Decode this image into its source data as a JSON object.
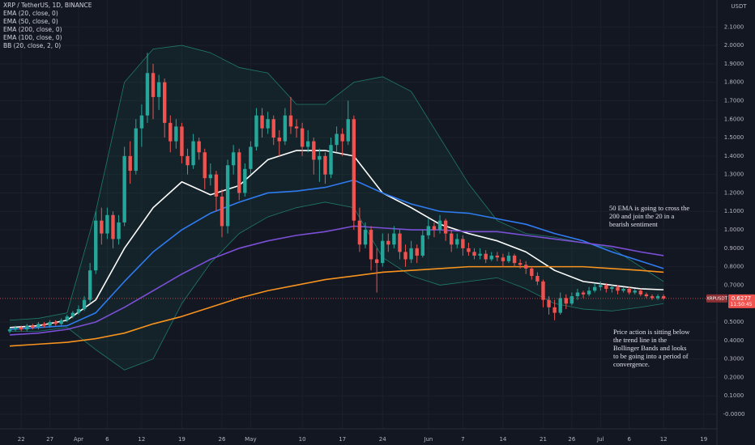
{
  "chart_data": {
    "type": "candlestick",
    "title": "XRP / TetherUS, 1D, BINANCE",
    "y_axis_label": "USDT",
    "up_color": "#26a69a",
    "down_color": "#ef5350",
    "grid": true,
    "xlim": [
      -1.7,
      123.3
    ],
    "xticks": [
      {
        "value": 2,
        "label": "22"
      },
      {
        "value": 7,
        "label": "27"
      },
      {
        "value": 12,
        "label": "Apr"
      },
      {
        "value": 17,
        "label": "6"
      },
      {
        "value": 23,
        "label": "12"
      },
      {
        "value": 30,
        "label": "19"
      },
      {
        "value": 37,
        "label": "26"
      },
      {
        "value": 42,
        "label": "May"
      },
      {
        "value": 51,
        "label": "10"
      },
      {
        "value": 58,
        "label": "17"
      },
      {
        "value": 65,
        "label": "24"
      },
      {
        "value": 73,
        "label": "Jun"
      },
      {
        "value": 79,
        "label": "7"
      },
      {
        "value": 86,
        "label": "14"
      },
      {
        "value": 93,
        "label": "21"
      },
      {
        "value": 98,
        "label": "26"
      },
      {
        "value": 103,
        "label": "Jul"
      },
      {
        "value": 108,
        "label": "6"
      },
      {
        "value": 114,
        "label": "12"
      },
      {
        "value": 121,
        "label": "19"
      }
    ],
    "ylim": [
      -0.079,
      2.246
    ],
    "yticks": [
      {
        "value": 0,
        "label": "-0.0000"
      },
      {
        "value": 0.1,
        "label": "0.1000"
      },
      {
        "value": 0.2,
        "label": "0.2000"
      },
      {
        "value": 0.3,
        "label": "0.3000"
      },
      {
        "value": 0.4,
        "label": "0.4000"
      },
      {
        "value": 0.5,
        "label": "0.5000"
      },
      {
        "value": 0.7,
        "label": "0.7000"
      },
      {
        "value": 0.8,
        "label": "0.8000"
      },
      {
        "value": 0.9,
        "label": "0.9000"
      },
      {
        "value": 1.0,
        "label": "1.0000"
      },
      {
        "value": 1.1,
        "label": "1.1000"
      },
      {
        "value": 1.2,
        "label": "1.2000"
      },
      {
        "value": 1.3,
        "label": "1.3000"
      },
      {
        "value": 1.4,
        "label": "1.4000"
      },
      {
        "value": 1.5,
        "label": "1.5000"
      },
      {
        "value": 1.6,
        "label": "1.6000"
      },
      {
        "value": 1.7,
        "label": "1.7000"
      },
      {
        "value": 1.8,
        "label": "1.8000"
      },
      {
        "value": 1.9,
        "label": "1.9000"
      },
      {
        "value": 2.0,
        "label": "2.0000"
      },
      {
        "value": 2.1,
        "label": "2.1000"
      }
    ],
    "x": [
      0,
      1,
      2,
      3,
      4,
      5,
      6,
      7,
      8,
      9,
      10,
      11,
      12,
      13,
      14,
      15,
      16,
      17,
      18,
      19,
      20,
      21,
      22,
      23,
      24,
      25,
      26,
      27,
      28,
      29,
      30,
      31,
      32,
      33,
      34,
      35,
      36,
      37,
      38,
      39,
      40,
      41,
      42,
      43,
      44,
      45,
      46,
      47,
      48,
      49,
      50,
      51,
      52,
      53,
      54,
      55,
      56,
      57,
      58,
      59,
      60,
      61,
      62,
      63,
      64,
      65,
      66,
      67,
      68,
      69,
      70,
      71,
      72,
      73,
      74,
      75,
      76,
      77,
      78,
      79,
      80,
      81,
      82,
      83,
      84,
      85,
      86,
      87,
      88,
      89,
      90,
      91,
      92,
      93,
      94,
      95,
      96,
      97,
      98,
      99,
      100,
      101,
      102,
      103,
      104,
      105,
      106,
      107,
      108,
      109,
      110,
      111,
      112,
      113,
      114
    ],
    "ohlc": [
      [
        0.45,
        0.47,
        0.44,
        0.46
      ],
      [
        0.46,
        0.48,
        0.45,
        0.47
      ],
      [
        0.47,
        0.48,
        0.45,
        0.46
      ],
      [
        0.46,
        0.49,
        0.45,
        0.48
      ],
      [
        0.48,
        0.49,
        0.46,
        0.47
      ],
      [
        0.47,
        0.5,
        0.46,
        0.49
      ],
      [
        0.49,
        0.5,
        0.47,
        0.48
      ],
      [
        0.48,
        0.51,
        0.47,
        0.5
      ],
      [
        0.5,
        0.51,
        0.48,
        0.49
      ],
      [
        0.49,
        0.52,
        0.48,
        0.51
      ],
      [
        0.51,
        0.54,
        0.5,
        0.53
      ],
      [
        0.53,
        0.56,
        0.52,
        0.55
      ],
      [
        0.55,
        0.59,
        0.54,
        0.57
      ],
      [
        0.57,
        0.64,
        0.56,
        0.62
      ],
      [
        0.62,
        0.82,
        0.6,
        0.78
      ],
      [
        0.78,
        1.1,
        0.76,
        1.05
      ],
      [
        1.05,
        1.12,
        0.92,
        0.98
      ],
      [
        0.98,
        1.12,
        0.95,
        1.08
      ],
      [
        1.08,
        1.1,
        0.9,
        0.95
      ],
      [
        0.95,
        1.08,
        0.92,
        1.04
      ],
      [
        1.04,
        1.45,
        1.02,
        1.4
      ],
      [
        1.4,
        1.48,
        1.25,
        1.32
      ],
      [
        1.32,
        1.6,
        1.3,
        1.55
      ],
      [
        1.55,
        1.68,
        1.45,
        1.62
      ],
      [
        1.62,
        1.96,
        1.58,
        1.85
      ],
      [
        1.85,
        1.9,
        1.6,
        1.72
      ],
      [
        1.72,
        1.84,
        1.65,
        1.8
      ],
      [
        1.8,
        1.82,
        1.5,
        1.58
      ],
      [
        1.58,
        1.62,
        1.42,
        1.48
      ],
      [
        1.48,
        1.6,
        1.44,
        1.56
      ],
      [
        1.56,
        1.58,
        1.36,
        1.4
      ],
      [
        1.4,
        1.44,
        1.3,
        1.35
      ],
      [
        1.35,
        1.52,
        1.33,
        1.48
      ],
      [
        1.48,
        1.5,
        1.38,
        1.42
      ],
      [
        1.42,
        1.44,
        1.22,
        1.28
      ],
      [
        1.28,
        1.36,
        1.24,
        1.3
      ],
      [
        1.3,
        1.32,
        1.1,
        1.18
      ],
      [
        1.18,
        1.22,
        0.96,
        1.02
      ],
      [
        1.02,
        1.38,
        0.98,
        1.35
      ],
      [
        1.35,
        1.46,
        1.3,
        1.42
      ],
      [
        1.42,
        1.44,
        1.16,
        1.2
      ],
      [
        1.2,
        1.36,
        1.18,
        1.33
      ],
      [
        1.33,
        1.48,
        1.3,
        1.45
      ],
      [
        1.45,
        1.66,
        1.43,
        1.62
      ],
      [
        1.62,
        1.66,
        1.5,
        1.55
      ],
      [
        1.55,
        1.64,
        1.52,
        1.6
      ],
      [
        1.6,
        1.62,
        1.46,
        1.5
      ],
      [
        1.5,
        1.54,
        1.4,
        1.48
      ],
      [
        1.48,
        1.66,
        1.46,
        1.62
      ],
      [
        1.62,
        1.72,
        1.52,
        1.56
      ],
      [
        1.56,
        1.6,
        1.5,
        1.55
      ],
      [
        1.55,
        1.58,
        1.4,
        1.45
      ],
      [
        1.45,
        1.54,
        1.42,
        1.48
      ],
      [
        1.48,
        1.5,
        1.3,
        1.38
      ],
      [
        1.38,
        1.44,
        1.26,
        1.4
      ],
      [
        1.4,
        1.42,
        1.25,
        1.3
      ],
      [
        1.3,
        1.5,
        1.28,
        1.46
      ],
      [
        1.46,
        1.56,
        1.42,
        1.52
      ],
      [
        1.52,
        1.55,
        1.4,
        1.48
      ],
      [
        1.48,
        1.7,
        1.46,
        1.6
      ],
      [
        1.6,
        1.62,
        1.0,
        1.05
      ],
      [
        1.05,
        1.12,
        0.88,
        0.92
      ],
      [
        0.92,
        1.04,
        0.9,
        1.0
      ],
      [
        1.0,
        1.02,
        0.78,
        0.84
      ],
      [
        0.84,
        0.9,
        0.66,
        0.82
      ],
      [
        0.82,
        0.98,
        0.8,
        0.94
      ],
      [
        0.94,
        0.98,
        0.88,
        0.92
      ],
      [
        0.92,
        1.02,
        0.9,
        0.98
      ],
      [
        0.98,
        1.0,
        0.84,
        0.88
      ],
      [
        0.88,
        0.92,
        0.8,
        0.84
      ],
      [
        0.84,
        0.94,
        0.82,
        0.9
      ],
      [
        0.9,
        0.92,
        0.82,
        0.86
      ],
      [
        0.86,
        1.0,
        0.85,
        0.97
      ],
      [
        0.97,
        1.06,
        0.95,
        1.02
      ],
      [
        1.02,
        1.04,
        0.96,
        1.0
      ],
      [
        1.0,
        1.08,
        0.98,
        1.05
      ],
      [
        1.05,
        1.06,
        0.94,
        0.98
      ],
      [
        0.98,
        1.0,
        0.88,
        0.92
      ],
      [
        0.92,
        0.98,
        0.9,
        0.95
      ],
      [
        0.95,
        0.97,
        0.86,
        0.9
      ],
      [
        0.9,
        0.93,
        0.86,
        0.88
      ],
      [
        0.88,
        0.9,
        0.84,
        0.86
      ],
      [
        0.86,
        0.9,
        0.84,
        0.87
      ],
      [
        0.87,
        0.89,
        0.82,
        0.84
      ],
      [
        0.84,
        0.88,
        0.83,
        0.86
      ],
      [
        0.86,
        0.88,
        0.83,
        0.85
      ],
      [
        0.85,
        0.87,
        0.8,
        0.83
      ],
      [
        0.83,
        0.88,
        0.82,
        0.86
      ],
      [
        0.86,
        0.87,
        0.8,
        0.82
      ],
      [
        0.82,
        0.84,
        0.79,
        0.81
      ],
      [
        0.81,
        0.83,
        0.76,
        0.79
      ],
      [
        0.79,
        0.8,
        0.73,
        0.75
      ],
      [
        0.75,
        0.77,
        0.7,
        0.72
      ],
      [
        0.72,
        0.73,
        0.58,
        0.62
      ],
      [
        0.62,
        0.64,
        0.54,
        0.58
      ],
      [
        0.58,
        0.62,
        0.51,
        0.55
      ],
      [
        0.55,
        0.66,
        0.54,
        0.63
      ],
      [
        0.63,
        0.65,
        0.57,
        0.6
      ],
      [
        0.6,
        0.66,
        0.59,
        0.64
      ],
      [
        0.64,
        0.68,
        0.62,
        0.66
      ],
      [
        0.66,
        0.67,
        0.63,
        0.65
      ],
      [
        0.65,
        0.69,
        0.64,
        0.67
      ],
      [
        0.67,
        0.71,
        0.66,
        0.69
      ],
      [
        0.69,
        0.72,
        0.67,
        0.7
      ],
      [
        0.7,
        0.71,
        0.66,
        0.68
      ],
      [
        0.68,
        0.7,
        0.66,
        0.69
      ],
      [
        0.69,
        0.7,
        0.65,
        0.67
      ],
      [
        0.67,
        0.69,
        0.66,
        0.68
      ],
      [
        0.68,
        0.69,
        0.65,
        0.66
      ],
      [
        0.66,
        0.68,
        0.65,
        0.67
      ],
      [
        0.67,
        0.68,
        0.64,
        0.65
      ],
      [
        0.65,
        0.66,
        0.63,
        0.64
      ],
      [
        0.64,
        0.65,
        0.62,
        0.63
      ],
      [
        0.63,
        0.65,
        0.62,
        0.64
      ],
      [
        0.64,
        0.65,
        0.62,
        0.6277
      ]
    ],
    "indicator_x": [
      0,
      5,
      10,
      15,
      20,
      25,
      30,
      35,
      40,
      45,
      50,
      55,
      60,
      65,
      70,
      75,
      80,
      85,
      90,
      95,
      100,
      105,
      110,
      114
    ],
    "indicators": [
      {
        "name": "EMA (20, close, 0)",
        "color": "#ffffff",
        "values": [
          0.47,
          0.48,
          0.51,
          0.62,
          0.9,
          1.12,
          1.26,
          1.19,
          1.24,
          1.38,
          1.43,
          1.43,
          1.4,
          1.2,
          1.12,
          1.03,
          0.98,
          0.94,
          0.88,
          0.78,
          0.72,
          0.7,
          0.68,
          0.675
        ]
      },
      {
        "name": "EMA (50, close, 0)",
        "color": "#2f7bf0",
        "values": [
          0.46,
          0.47,
          0.48,
          0.55,
          0.72,
          0.88,
          1.0,
          1.09,
          1.15,
          1.2,
          1.21,
          1.23,
          1.27,
          1.2,
          1.14,
          1.1,
          1.09,
          1.06,
          1.03,
          0.98,
          0.94,
          0.88,
          0.83,
          0.79
        ]
      },
      {
        "name": "EMA (200, close, 0)",
        "color": "#f7931e",
        "values": [
          0.37,
          0.38,
          0.39,
          0.41,
          0.44,
          0.49,
          0.53,
          0.58,
          0.63,
          0.67,
          0.7,
          0.73,
          0.75,
          0.77,
          0.78,
          0.79,
          0.8,
          0.8,
          0.8,
          0.8,
          0.8,
          0.79,
          0.78,
          0.77
        ]
      },
      {
        "name": "EMA (100, close, 0)",
        "color": "#7b4fd6",
        "values": [
          0.43,
          0.44,
          0.46,
          0.5,
          0.58,
          0.67,
          0.76,
          0.84,
          0.9,
          0.94,
          0.97,
          0.99,
          1.02,
          1.01,
          1.0,
          1.0,
          0.99,
          0.99,
          0.97,
          0.95,
          0.93,
          0.91,
          0.88,
          0.86
        ]
      }
    ],
    "bands": {
      "name": "BB (20, close, 2, 0)",
      "color": "#1f7a6a",
      "upper": [
        0.51,
        0.52,
        0.55,
        1.1,
        1.8,
        1.98,
        2.0,
        1.96,
        1.88,
        1.85,
        1.68,
        1.68,
        1.8,
        1.83,
        1.75,
        1.5,
        1.25,
        1.05,
        0.98,
        0.96,
        0.93,
        0.9,
        0.8,
        0.72
      ],
      "lower": [
        0.45,
        0.45,
        0.47,
        0.35,
        0.24,
        0.3,
        0.6,
        0.82,
        0.98,
        1.07,
        1.12,
        1.15,
        1.12,
        0.85,
        0.75,
        0.7,
        0.72,
        0.74,
        0.68,
        0.6,
        0.57,
        0.56,
        0.58,
        0.6
      ]
    },
    "price_tag": {
      "symbol": "XRPUSDT",
      "price": "0.6277",
      "timer": "11:50:45"
    },
    "annotations": [
      [
        "50 EMA is going to cross the",
        "200 and join the 20 in a",
        "bearish sentiment"
      ],
      [
        "Price action is sitting below",
        "the trend line in the",
        "Bollinger Bands and looks",
        "to be going into a period of",
        "convergence."
      ]
    ]
  }
}
